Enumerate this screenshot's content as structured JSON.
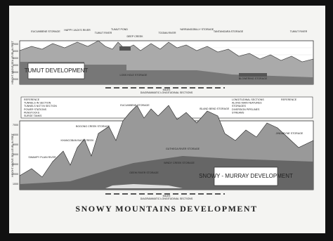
{
  "title": "SNOWY MOUNTAINS DEVELOPMENT",
  "tumut": {
    "name": "TUMUT DEVELOPMENT",
    "section": "DIAGRAMMATIC LONGITUDINAL SECTIONS",
    "scale": "MILES",
    "axis": "HEIGHT ABOVE SEA LEVEL IN FEET",
    "elevations": [
      "7000",
      "6000",
      "5000",
      "4000",
      "3000",
      "2000"
    ],
    "features": [
      "EUCUMBENE STORAGE",
      "HAPPY JACK'S RIVER",
      "TUMUT RIVER",
      "TUMUT POND",
      "DEEP CREEK",
      "TOOMA RIVER",
      "YARRANGOBILLY STORAGE",
      "TANTANGARA STORAGE",
      "TUMUT RIVER",
      "LOBS HOLE STORAGE",
      "BLOWERING STORAGE"
    ]
  },
  "snowy_murray": {
    "name": "SNOWY - MURRAY DEVELOPMENT",
    "section": "DIAGRAMMATIC LONGITUDINAL SECTIONS",
    "scale": "MILES",
    "axis": "HEIGHT ABOVE SEA LEVEL IN FEET",
    "elevations": [
      "7000",
      "6000",
      "5000",
      "4000",
      "3000",
      "2000",
      "1000"
    ],
    "features": [
      "EUCUMBENE STORAGE",
      "ISLAND BEND STORAGE",
      "BOGONG CREEK STORAGE",
      "KHANCOBAN BACK CREEK",
      "SWAMPY PLAIN RIVER",
      "GEEHI RIVER STORAGE",
      "GUTHEGA RIVER STORAGE",
      "WINDY CREEK STORAGE",
      "JINDABYNE STORAGE"
    ]
  },
  "legend": {
    "left": [
      "REFERENCE",
      "TUNNELS IN SECTION",
      "TUNNELS NOT IN SECTION",
      "POWER STATIONS",
      "PENSTOCKS",
      "SURGE TANKS"
    ],
    "right": [
      "LONGITUDINAL SECTIONS",
      "ALONG MAIN FEATURES",
      "STORAGES",
      "DIVERSION PIPELINES",
      "STREAMS",
      "REFERENCE"
    ]
  }
}
